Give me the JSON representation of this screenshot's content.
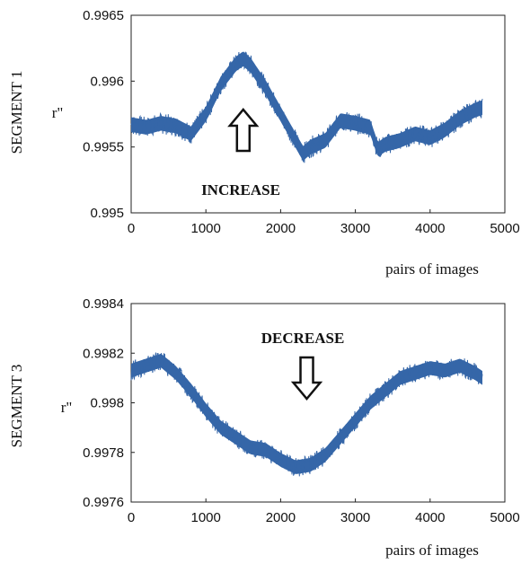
{
  "colors": {
    "series": "#3566a8",
    "axis": "#222222",
    "arrow": "#111111"
  },
  "chart_data": [
    {
      "type": "line",
      "side_label": "SEGMENT 1",
      "ylabel": "r\"",
      "xlabel": "pairs of images",
      "xlim": [
        0,
        5000
      ],
      "ylim": [
        0.995,
        0.9965
      ],
      "xticks": [
        "0",
        "1000",
        "2000",
        "3000",
        "4000",
        "5000"
      ],
      "xtick_values": [
        0,
        1000,
        2000,
        3000,
        4000,
        5000
      ],
      "yticks": [
        "0.995",
        "0.9955",
        "0.996",
        "0.9965"
      ],
      "ytick_values": [
        0.995,
        0.9955,
        0.996,
        0.9965
      ],
      "grid": false,
      "noise_band": 8e-05,
      "series": [
        {
          "x": [
            0,
            200,
            400,
            600,
            800,
            1000,
            1200,
            1400,
            1500,
            1600,
            1800,
            2000,
            2200,
            2300,
            2400,
            2600,
            2800,
            3000,
            3200,
            3300,
            3400,
            3600,
            3800,
            4000,
            4200,
            4400,
            4600,
            4700
          ],
          "values": [
            0.99567,
            0.99565,
            0.99568,
            0.99566,
            0.9956,
            0.99575,
            0.99598,
            0.99613,
            0.99617,
            0.99612,
            0.99595,
            0.99575,
            0.99555,
            0.99545,
            0.9955,
            0.99555,
            0.9957,
            0.99568,
            0.99565,
            0.99548,
            0.99552,
            0.99555,
            0.9956,
            0.99557,
            0.99563,
            0.99572,
            0.99578,
            0.9958
          ]
        }
      ],
      "annotation": {
        "text": "INCREASE",
        "arrow": "up",
        "arrow_x": 1500
      }
    },
    {
      "type": "line",
      "side_label": "SEGMENT 3",
      "ylabel": "r\"",
      "xlabel": "pairs of images",
      "xlim": [
        0,
        5000
      ],
      "ylim": [
        0.9976,
        0.9984
      ],
      "xticks": [
        "0",
        "1000",
        "2000",
        "3000",
        "4000",
        "5000"
      ],
      "xtick_values": [
        0,
        1000,
        2000,
        3000,
        4000,
        5000
      ],
      "yticks": [
        "0.9976",
        "0.9978",
        "0.998",
        "0.9982",
        "0.9984"
      ],
      "ytick_values": [
        0.9976,
        0.9978,
        0.998,
        0.9982,
        0.9984
      ],
      "grid": false,
      "noise_band": 4e-05,
      "series": [
        {
          "x": [
            0,
            200,
            400,
            600,
            800,
            1000,
            1200,
            1400,
            1600,
            1800,
            2000,
            2200,
            2400,
            2600,
            2800,
            3000,
            3200,
            3400,
            3600,
            3800,
            4000,
            4200,
            4400,
            4600,
            4700
          ],
          "values": [
            0.99813,
            0.99815,
            0.99817,
            0.99812,
            0.99805,
            0.99797,
            0.9979,
            0.99786,
            0.99782,
            0.99781,
            0.99777,
            0.99774,
            0.99775,
            0.99779,
            0.99786,
            0.99793,
            0.998,
            0.99805,
            0.9981,
            0.99812,
            0.99814,
            0.99813,
            0.99815,
            0.99812,
            0.9981
          ]
        }
      ],
      "annotation": {
        "text": "DECREASE",
        "arrow": "down",
        "arrow_x": 2350
      }
    }
  ]
}
